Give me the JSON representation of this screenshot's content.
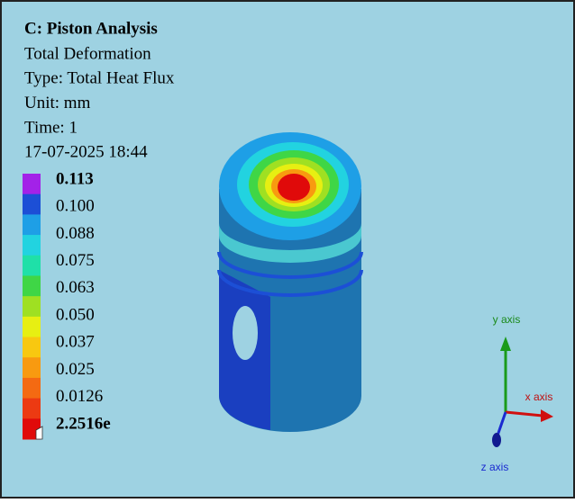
{
  "header": {
    "title": "C: Piston Analysis",
    "lines": [
      "Total Deformation",
      "Type: Total Heat Flux",
      "Unit: mm",
      "Time: 1",
      "17-07-2025 18:44"
    ]
  },
  "legend": {
    "labels": [
      "0.113",
      "0.100",
      "0.088",
      "0.075",
      "0.063",
      "0.050",
      "0.037",
      "0.025",
      "0.0126",
      "2.2516e"
    ],
    "colors": [
      "#a322e8",
      "#1c4fd6",
      "#1e9fe6",
      "#22d3e0",
      "#1fe0a8",
      "#3fd646",
      "#9fe022",
      "#e7ef12",
      "#f8c810",
      "#f89a10",
      "#f46a12",
      "#ec3a12",
      "#e00a0a"
    ]
  },
  "triad": {
    "y": "y axis",
    "x": "x axis",
    "z": "z axis"
  }
}
